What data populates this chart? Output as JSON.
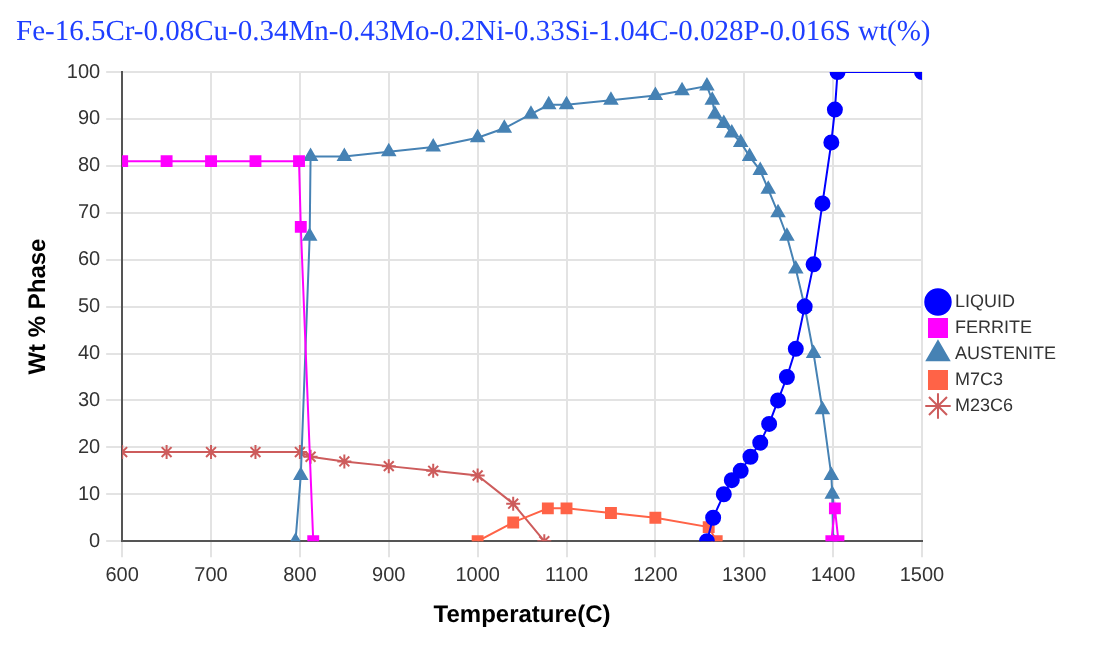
{
  "chart_data": {
    "type": "line",
    "title": "Fe-16.5Cr-0.08Cu-0.34Mn-0.43Mo-0.2Ni-0.33Si-1.04C-0.028P-0.016S wt(%)",
    "xlabel": "Temperature(C)",
    "ylabel": "Wt % Phase",
    "xlim": [
      600,
      1500
    ],
    "xticks": [
      600,
      700,
      800,
      900,
      1000,
      1100,
      1200,
      1300,
      1400,
      1500
    ],
    "ylim": [
      0,
      100
    ],
    "yticks": [
      0,
      10,
      20,
      30,
      40,
      50,
      60,
      70,
      80,
      90,
      100
    ],
    "grid": true,
    "legend": "right",
    "series": [
      {
        "name": "LIQUID",
        "color": "#0000ff",
        "marker": "circle",
        "x": [
          1258,
          1265,
          1277,
          1286,
          1296,
          1307,
          1318,
          1328,
          1338,
          1348,
          1358,
          1368,
          1378,
          1388,
          1398,
          1402,
          1405,
          1500
        ],
        "values": [
          0,
          5,
          10,
          13,
          15,
          18,
          21,
          25,
          30,
          35,
          41,
          50,
          59,
          72,
          85,
          92,
          100,
          100
        ]
      },
      {
        "name": "FERRITE",
        "color": "#ff00ff",
        "marker": "square",
        "x": [
          600,
          650,
          700,
          750,
          799,
          801,
          815,
          1000,
          1398,
          1402,
          1406
        ],
        "values": [
          81,
          81,
          81,
          81,
          81,
          67,
          0,
          null,
          0,
          7,
          0
        ]
      },
      {
        "name": "AUSTENITE",
        "color": "#4682b4",
        "marker": "triangle",
        "x": [
          795,
          801,
          811,
          812,
          850,
          900,
          950,
          1000,
          1030,
          1060,
          1080,
          1100,
          1150,
          1200,
          1230,
          1258,
          1264,
          1267,
          1277,
          1286,
          1296,
          1306,
          1318,
          1327,
          1338,
          1348,
          1358,
          1368,
          1378,
          1388,
          1398,
          1399,
          1400
        ],
        "values": [
          0,
          14,
          65,
          82,
          82,
          83,
          84,
          86,
          88,
          91,
          93,
          93,
          94,
          95,
          96,
          97,
          94,
          91,
          89,
          87,
          85,
          82,
          79,
          75,
          70,
          65,
          58,
          50,
          40,
          28,
          14,
          10,
          0
        ]
      },
      {
        "name": "M7C3",
        "color": "#ff6347",
        "marker": "square",
        "x": [
          1000,
          1040,
          1079,
          1100,
          1150,
          1200,
          1260,
          1269
        ],
        "values": [
          0,
          4,
          7,
          7,
          6,
          5,
          3,
          0
        ]
      },
      {
        "name": "M23C6",
        "color": "#cd5c5c",
        "marker": "cross",
        "x": [
          600,
          650,
          700,
          750,
          800,
          812,
          850,
          900,
          950,
          1000,
          1040,
          1075
        ],
        "values": [
          19,
          19,
          19,
          19,
          19,
          18,
          17,
          16,
          15,
          14,
          8,
          0
        ]
      }
    ]
  }
}
